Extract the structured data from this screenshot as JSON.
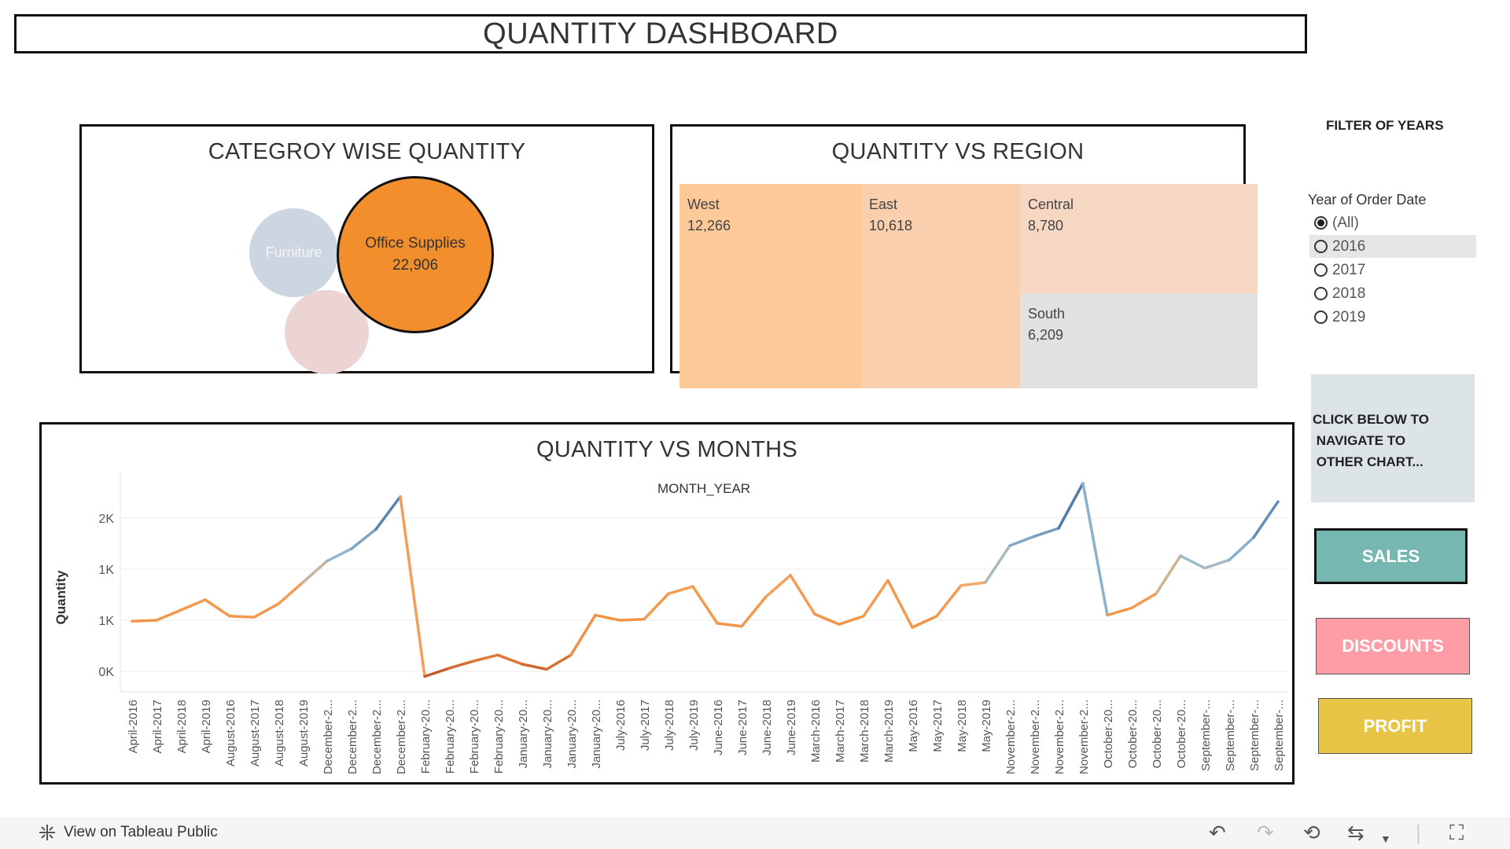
{
  "dashboard": {
    "title": "QUANTITY DASHBOARD"
  },
  "category_panel": {
    "title": "CATEGROY WISE QUANTITY",
    "bubbles": [
      {
        "label": "Furniture",
        "value": ""
      },
      {
        "label": "Office Supplies",
        "value": "22,906"
      }
    ]
  },
  "region_panel": {
    "title": "QUANTITY VS REGION",
    "tiles": [
      {
        "region": "West",
        "value": "12,266"
      },
      {
        "region": "East",
        "value": "10,618"
      },
      {
        "region": "Central",
        "value": "8,780"
      },
      {
        "region": "South",
        "value": "6,209"
      }
    ]
  },
  "filter": {
    "title": "FILTER OF YEARS",
    "label": "Year of Order Date",
    "options": [
      "(All)",
      "2016",
      "2017",
      "2018",
      "2019"
    ],
    "selected": "(All)"
  },
  "nav": {
    "note_lines": [
      "CLICK BELOW TO",
      " NAVIGATE TO",
      " OTHER CHART..."
    ],
    "buttons": {
      "sales": "SALES",
      "discounts": "DISCOUNTS",
      "profit": "PROFIT"
    }
  },
  "colors": {
    "orange": "#f28e2b",
    "teal": "#76b7b2",
    "pink": "#ff9da7",
    "yellow": "#e8c547",
    "line_blue": "#4e79a7",
    "line_orange": "#f28e2b",
    "line_dark": "#b5522a"
  },
  "chart_data": {
    "type": "line",
    "title": "QUANTITY VS MONTHS",
    "subtitle": "MONTH_YEAR",
    "ylabel": "Quantity",
    "y_tick_labels": [
      "0K",
      "1K",
      "1K",
      "2K"
    ],
    "y_tick_values": [
      500,
      1000,
      1500,
      2000
    ],
    "ylim": [
      300,
      2300
    ],
    "x": [
      "April-2016",
      "April-2017",
      "April-2018",
      "April-2019",
      "August-2016",
      "August-2017",
      "August-2018",
      "August-2019",
      "December-2...",
      "December-2...",
      "December-2...",
      "December-2...",
      "February-20...",
      "February-20...",
      "February-20...",
      "February-20...",
      "January-20...",
      "January-20...",
      "January-20...",
      "January-20...",
      "July-2016",
      "July-2017",
      "July-2018",
      "July-2019",
      "June-2016",
      "June-2017",
      "June-2018",
      "June-2019",
      "March-2016",
      "March-2017",
      "March-2018",
      "March-2019",
      "May-2016",
      "May-2017",
      "May-2018",
      "May-2019",
      "November-2...",
      "November-2...",
      "November-2...",
      "November-2...",
      "October-20...",
      "October-20...",
      "October-20...",
      "October-20...",
      "September-...",
      "September-...",
      "September-...",
      "September-..."
    ],
    "values": [
      990,
      1000,
      1100,
      1200,
      1040,
      1030,
      1160,
      1370,
      1580,
      1700,
      1890,
      2210,
      450,
      530,
      600,
      660,
      570,
      520,
      660,
      1050,
      1000,
      1010,
      1260,
      1330,
      970,
      940,
      1230,
      1440,
      1060,
      960,
      1040,
      1390,
      930,
      1040,
      1340,
      1370,
      1730,
      1820,
      1900,
      2340,
      1050,
      1120,
      1260,
      1630,
      1510,
      1590,
      1810,
      2160
    ],
    "grid": true
  },
  "footer": {
    "link": "View on Tableau Public"
  }
}
